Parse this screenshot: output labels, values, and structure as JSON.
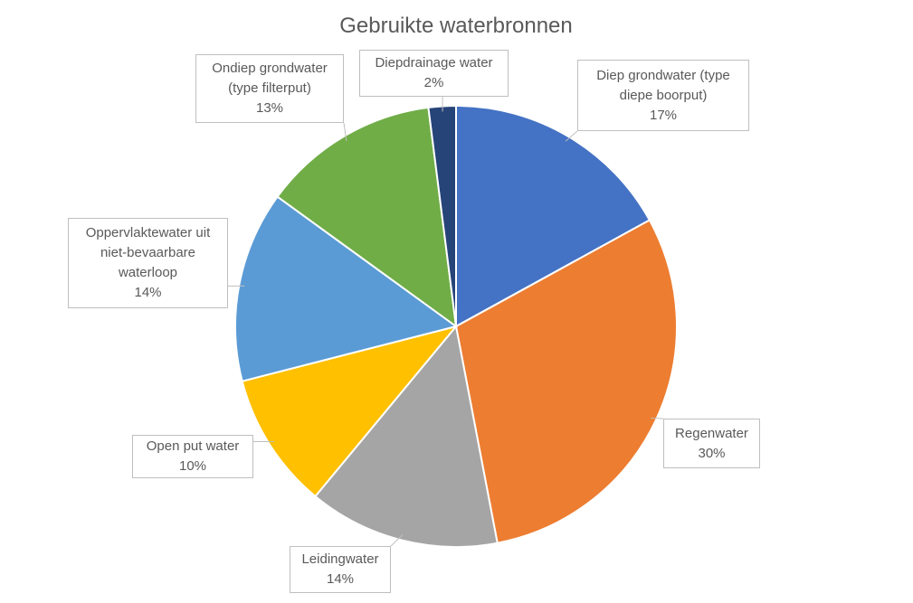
{
  "chart_data": {
    "type": "pie",
    "title": "Gebruikte waterbronnen",
    "categories": [
      "Diep grondwater (type diepe boorput)",
      "Regenwater",
      "Leidingwater",
      "Open put water",
      "Oppervlaktewater uit niet-bevaarbare waterloop",
      "Ondiep grondwater (type filterput)",
      "Diepdrainage water"
    ],
    "values": [
      17,
      30,
      14,
      10,
      14,
      13,
      2
    ],
    "value_labels": [
      "17%",
      "30%",
      "14%",
      "10%",
      "14%",
      "13%",
      "2%"
    ],
    "colors": [
      "#4472c4",
      "#ed7d31",
      "#a5a5a5",
      "#ffc000",
      "#5b9bd5",
      "#70ad47",
      "#264478"
    ]
  }
}
